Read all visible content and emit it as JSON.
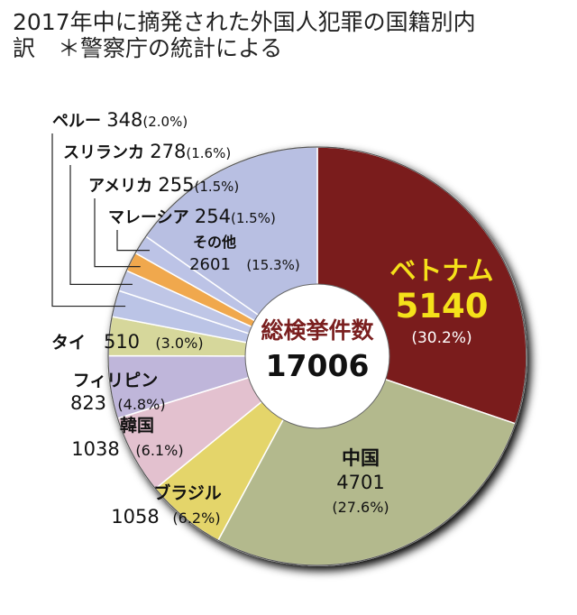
{
  "title_line1": "2017年中に摘発された外国人犯罪の国籍別内",
  "title_line2": "訳　＊警察庁の統計による",
  "center_label": "総検挙件数",
  "center_total": "17006",
  "colors": {
    "vietnam": "#7a1f1f",
    "china": "#b3b98d",
    "brazil": "#e4d56a",
    "korea": "#e3c1cf",
    "philippines": "#bfb6da",
    "thailand": "#d6d79b",
    "other": "#b8bfe2",
    "peru": "#bbc4e6",
    "srilanka": "#bfc6e6",
    "usa": "#f0a84e",
    "malaysia": "#bcc3e6",
    "highlight": "#f5e11a"
  },
  "chart_data": {
    "type": "pie",
    "title": "2017年中に摘発された外国人犯罪の国籍別内訳　＊警察庁の統計による",
    "total": 17006,
    "slices": [
      {
        "name": "ベトナム",
        "value": 5140,
        "percent": "(30.2%)"
      },
      {
        "name": "中国",
        "value": 4701,
        "percent": "(27.6%)"
      },
      {
        "name": "ブラジル",
        "value": 1058,
        "percent": "(6.2%)"
      },
      {
        "name": "韓国",
        "value": 1038,
        "percent": "(6.1%)"
      },
      {
        "name": "フィリピン",
        "value": 823,
        "percent": "(4.8%)"
      },
      {
        "name": "タイ",
        "value": 510,
        "percent": "(3.0%)"
      },
      {
        "name": "ペルー",
        "value": 348,
        "percent": "(2.0%)"
      },
      {
        "name": "スリランカ",
        "value": 278,
        "percent": "(1.6%)"
      },
      {
        "name": "アメリカ",
        "value": 255,
        "percent": "(1.5%)"
      },
      {
        "name": "マレーシア",
        "value": 254,
        "percent": "(1.5%)"
      },
      {
        "name": "その他",
        "value": 2601,
        "percent": "(15.3%)"
      }
    ]
  }
}
